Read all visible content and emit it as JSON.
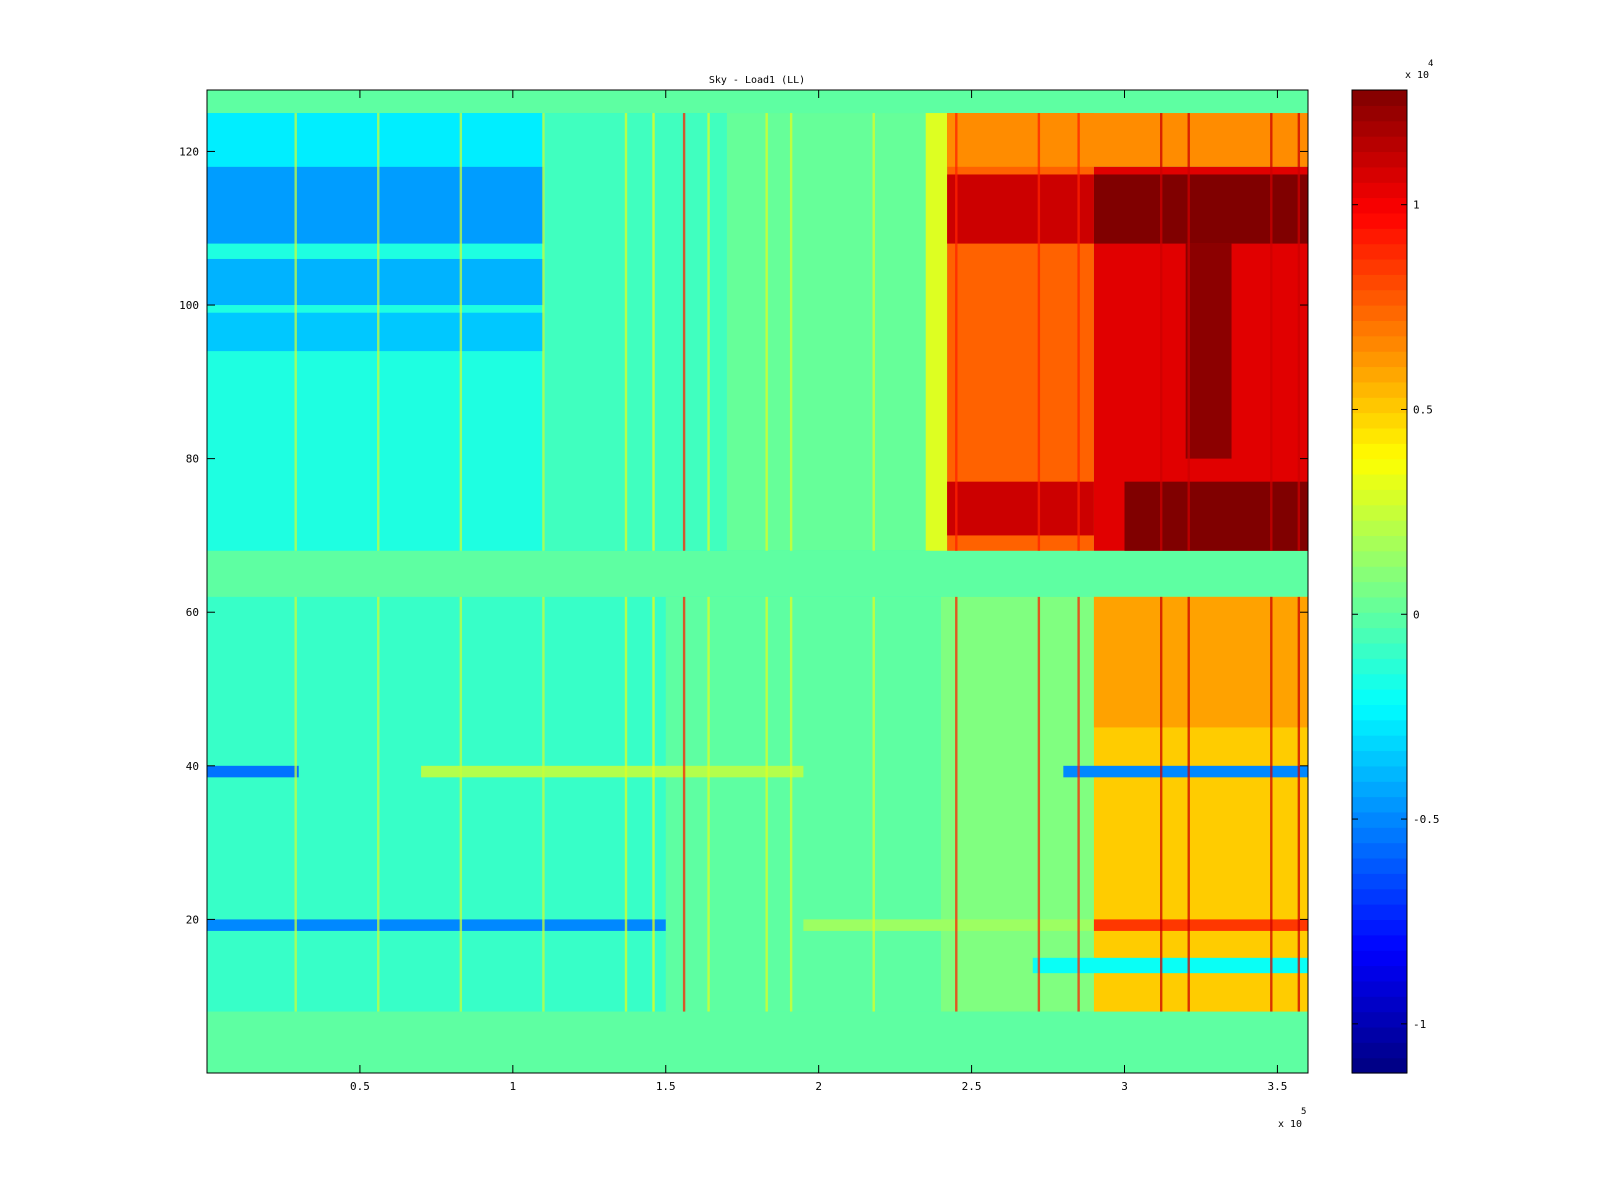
{
  "chart_data": {
    "type": "heatmap",
    "title": "Sky - Load1 (LL)",
    "xlabel": "",
    "ylabel": "",
    "xlim": [
      0,
      360000
    ],
    "ylim": [
      0,
      128
    ],
    "x_ticks": [
      {
        "value": 50000,
        "label": "0.5"
      },
      {
        "value": 100000,
        "label": "1"
      },
      {
        "value": 150000,
        "label": "1.5"
      },
      {
        "value": 200000,
        "label": "2"
      },
      {
        "value": 250000,
        "label": "2.5"
      },
      {
        "value": 300000,
        "label": "3"
      },
      {
        "value": 350000,
        "label": "3.5"
      }
    ],
    "x_multiplier": {
      "base": "x 10",
      "exponent": "5"
    },
    "y_ticks": [
      {
        "value": 20,
        "label": "20"
      },
      {
        "value": 40,
        "label": "40"
      },
      {
        "value": 60,
        "label": "60"
      },
      {
        "value": 80,
        "label": "80"
      },
      {
        "value": 100,
        "label": "100"
      },
      {
        "value": 120,
        "label": "120"
      }
    ],
    "colorbar": {
      "colormap": "jet",
      "clim": [
        -11200,
        12800
      ],
      "ticks": [
        {
          "value": -10000,
          "label": "-1"
        },
        {
          "value": -5000,
          "label": "-0.5"
        },
        {
          "value": 0,
          "label": "0"
        },
        {
          "value": 5000,
          "label": "0.5"
        },
        {
          "value": 10000,
          "label": "1"
        }
      ],
      "multiplier": {
        "base": "x 10",
        "exponent": "4"
      }
    },
    "regions": [
      {
        "x": [
          0,
          360000
        ],
        "y": [
          0,
          128
        ],
        "value": 0
      },
      {
        "x": [
          0,
          240000
        ],
        "y": [
          68,
          125
        ],
        "value": -1500
      },
      {
        "x": [
          0,
          110000
        ],
        "y": [
          118,
          125
        ],
        "value": -2600
      },
      {
        "x": [
          0,
          115000
        ],
        "y": [
          108,
          118
        ],
        "value": -4500
      },
      {
        "x": [
          0,
          110000
        ],
        "y": [
          100,
          106
        ],
        "value": -4000
      },
      {
        "x": [
          0,
          110000
        ],
        "y": [
          94,
          99
        ],
        "value": -3500
      },
      {
        "x": [
          110000,
          240000
        ],
        "y": [
          68,
          125
        ],
        "value": -700
      },
      {
        "x": [
          170000,
          240000
        ],
        "y": [
          68,
          125
        ],
        "value": 200
      },
      {
        "x": [
          235000,
          242000
        ],
        "y": [
          68,
          125
        ],
        "value": 3000
      },
      {
        "x": [
          242000,
          290000
        ],
        "y": [
          68,
          125
        ],
        "value": 7500
      },
      {
        "x": [
          242000,
          360000
        ],
        "y": [
          118,
          125
        ],
        "value": 6500
      },
      {
        "x": [
          242000,
          290000
        ],
        "y": [
          108,
          117
        ],
        "value": 11000
      },
      {
        "x": [
          290000,
          360000
        ],
        "y": [
          68,
          118
        ],
        "value": 10500
      },
      {
        "x": [
          290000,
          360000
        ],
        "y": [
          108,
          117
        ],
        "value": 12800
      },
      {
        "x": [
          320000,
          335000
        ],
        "y": [
          80,
          108
        ],
        "value": 12500
      },
      {
        "x": [
          242000,
          290000
        ],
        "y": [
          70,
          77
        ],
        "value": 11000
      },
      {
        "x": [
          300000,
          360000
        ],
        "y": [
          68,
          77
        ],
        "value": 12800
      },
      {
        "x": [
          0,
          290000
        ],
        "y": [
          8,
          62
        ],
        "value": -900
      },
      {
        "x": [
          150000,
          290000
        ],
        "y": [
          8,
          62
        ],
        "value": 0
      },
      {
        "x": [
          240000,
          290000
        ],
        "y": [
          8,
          62
        ],
        "value": 800
      },
      {
        "x": [
          290000,
          360000
        ],
        "y": [
          8,
          62
        ],
        "value": 5000
      },
      {
        "x": [
          290000,
          360000
        ],
        "y": [
          45,
          62
        ],
        "value": 6000
      },
      {
        "x": [
          0,
          30000
        ],
        "y": [
          38.5,
          40
        ],
        "value": -5500
      },
      {
        "x": [
          70000,
          195000
        ],
        "y": [
          38.5,
          40
        ],
        "value": 2000
      },
      {
        "x": [
          280000,
          360000
        ],
        "y": [
          38.5,
          40
        ],
        "value": -5000
      },
      {
        "x": [
          0,
          150000
        ],
        "y": [
          18.5,
          20
        ],
        "value": -5000
      },
      {
        "x": [
          195000,
          290000
        ],
        "y": [
          18.5,
          20
        ],
        "value": 1500
      },
      {
        "x": [
          290000,
          360000
        ],
        "y": [
          18.5,
          20
        ],
        "value": 8500
      },
      {
        "x": [
          270000,
          360000
        ],
        "y": [
          13,
          15
        ],
        "value": -2000
      }
    ],
    "stripes": [
      {
        "x": 29000,
        "value": 2500
      },
      {
        "x": 56000,
        "value": 2500
      },
      {
        "x": 83000,
        "value": 2500
      },
      {
        "x": 110000,
        "value": 2500
      },
      {
        "x": 137000,
        "value": 3000
      },
      {
        "x": 146000,
        "value": 3500
      },
      {
        "x": 156000,
        "value": 9000
      },
      {
        "x": 164000,
        "value": 3000
      },
      {
        "x": 183000,
        "value": 3000
      },
      {
        "x": 191000,
        "value": 3000
      },
      {
        "x": 218000,
        "value": 3000
      },
      {
        "x": 245000,
        "value": 9000
      },
      {
        "x": 272000,
        "value": 9000
      },
      {
        "x": 285000,
        "value": 9000
      },
      {
        "x": 312000,
        "value": 11000
      },
      {
        "x": 321000,
        "value": 11000
      },
      {
        "x": 348000,
        "value": 11000
      },
      {
        "x": 357000,
        "value": 11000
      }
    ]
  }
}
